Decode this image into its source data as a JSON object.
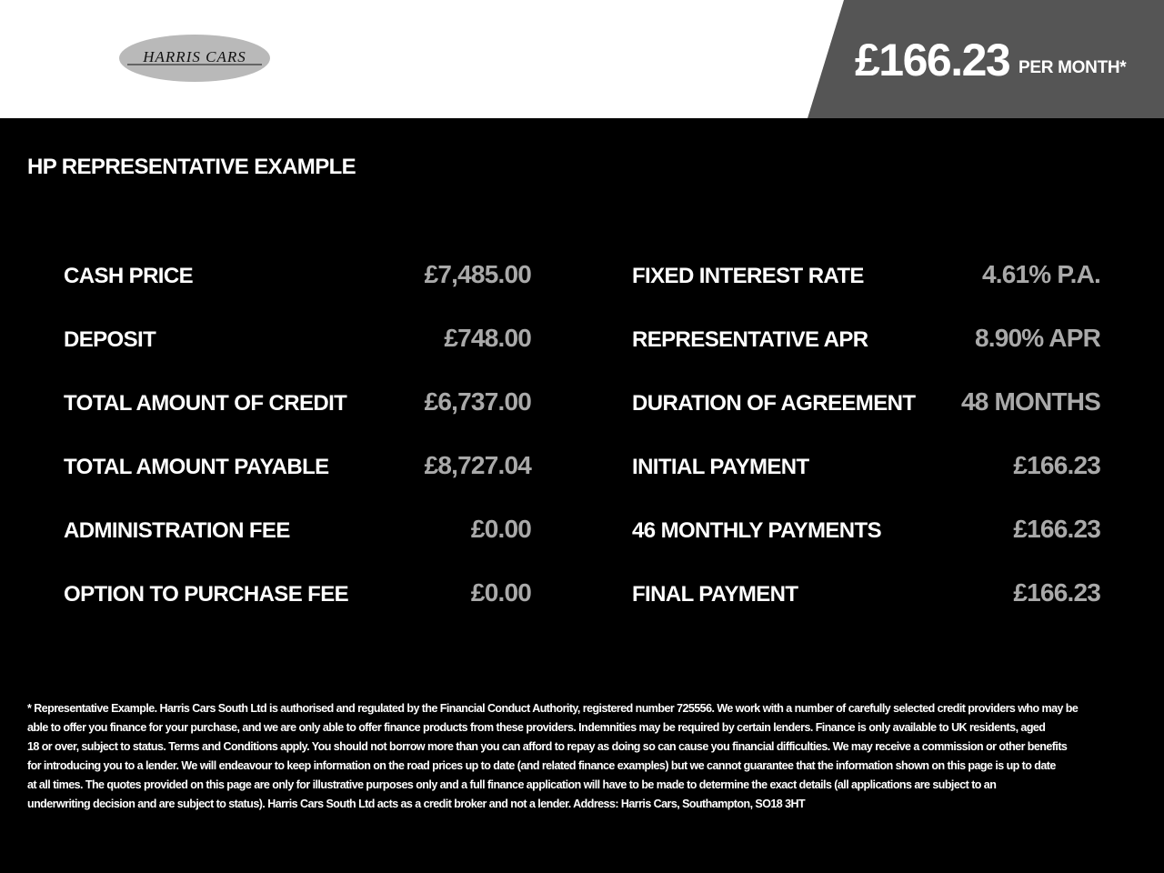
{
  "header": {
    "logo_text": "HARRIS CARS",
    "monthly_price": "£166.23",
    "per_month_label": "PER MONTH*"
  },
  "section_title": "HP REPRESENTATIVE EXAMPLE",
  "left_rows": [
    {
      "label": "CASH PRICE",
      "value": "£7,485.00"
    },
    {
      "label": "DEPOSIT",
      "value": "£748.00"
    },
    {
      "label": "TOTAL AMOUNT OF CREDIT",
      "value": "£6,737.00"
    },
    {
      "label": "TOTAL AMOUNT PAYABLE",
      "value": "£8,727.04"
    },
    {
      "label": "ADMINISTRATION FEE",
      "value": "£0.00"
    },
    {
      "label": "OPTION TO PURCHASE FEE",
      "value": "£0.00"
    }
  ],
  "right_rows": [
    {
      "label": "FIXED INTEREST RATE",
      "value": "4.61% P.A."
    },
    {
      "label": "REPRESENTATIVE APR",
      "value": "8.90% APR"
    },
    {
      "label": "DURATION OF AGREEMENT",
      "value": "48 MONTHS"
    },
    {
      "label": "INITIAL PAYMENT",
      "value": "£166.23"
    },
    {
      "label": "46 MONTHLY PAYMENTS",
      "value": "£166.23"
    },
    {
      "label": "FINAL PAYMENT",
      "value": "£166.23"
    }
  ],
  "footer_lines": [
    "* Representative Example. Harris Cars South Ltd is authorised and regulated by the Financial Conduct Authority, registered number 725556. We work with a number of carefully selected credit providers who may be",
    "able to offer you finance for your purchase, and we are only able to offer finance products from these providers. Indemnities may be required by certain lenders. Finance is only available to UK residents, aged",
    "18 or over, subject to status. Terms and Conditions apply. You should not borrow more than you can afford to repay as doing so can cause you financial difficulties. We may receive a commission or other benefits",
    "for introducing you to a lender. We will endeavour to keep information on the road prices up to date (and related finance examples) but we cannot guarantee that the information shown on this page is up to date",
    "at all times. The quotes provided on this page are only for illustrative purposes only and a full finance application will have to be made to determine the exact details (all applications are subject to an",
    "underwriting decision and are subject to status). Harris Cars South Ltd acts as a credit broker and not a lender. Address: Harris Cars, Southampton, SO18 3HT"
  ],
  "colors": {
    "header_bg": "#ffffff",
    "price_panel": "#555555",
    "value_text": "#a9a9a9",
    "body_bg": "#000000"
  }
}
